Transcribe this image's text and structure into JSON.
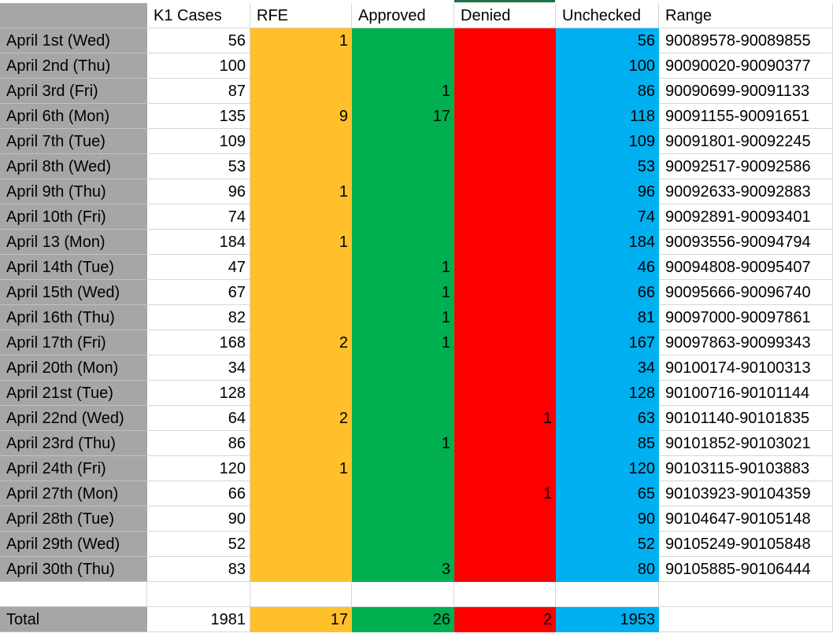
{
  "colors": {
    "label_gray": "#a6a6a6",
    "cases_white": "#ffffff",
    "rfe_yellow": "#ffc02b",
    "approved_green": "#00b050",
    "denied_red": "#ff0000",
    "unchecked_blue": "#00b0f0",
    "range_white": "#ffffff",
    "grid_line": "#d6d6d6"
  },
  "headers": {
    "label": "",
    "cases": "K1 Cases",
    "rfe": "RFE",
    "approved": "Approved",
    "denied": "Denied",
    "unchecked": "Unchecked",
    "range": "Range"
  },
  "rows": [
    {
      "label": "April 1st (Wed)",
      "cases": "56",
      "rfe": "1",
      "approved": "",
      "denied": "",
      "unchecked": "56",
      "range": "90089578-90089855"
    },
    {
      "label": "April 2nd (Thu)",
      "cases": "100",
      "rfe": "",
      "approved": "",
      "denied": "",
      "unchecked": "100",
      "range": "90090020-90090377"
    },
    {
      "label": "April 3rd (Fri)",
      "cases": "87",
      "rfe": "",
      "approved": "1",
      "denied": "",
      "unchecked": "86",
      "range": "90090699-90091133"
    },
    {
      "label": "April 6th (Mon)",
      "cases": "135",
      "rfe": "9",
      "approved": "17",
      "denied": "",
      "unchecked": "118",
      "range": "90091155-90091651"
    },
    {
      "label": "April 7th (Tue)",
      "cases": "109",
      "rfe": "",
      "approved": "",
      "denied": "",
      "unchecked": "109",
      "range": "90091801-90092245"
    },
    {
      "label": "April 8th (Wed)",
      "cases": "53",
      "rfe": "",
      "approved": "",
      "denied": "",
      "unchecked": "53",
      "range": "90092517-90092586"
    },
    {
      "label": "April 9th (Thu)",
      "cases": "96",
      "rfe": "1",
      "approved": "",
      "denied": "",
      "unchecked": "96",
      "range": "90092633-90092883"
    },
    {
      "label": "April 10th (Fri)",
      "cases": "74",
      "rfe": "",
      "approved": "",
      "denied": "",
      "unchecked": "74",
      "range": "90092891-90093401"
    },
    {
      "label": "April 13 (Mon)",
      "cases": "184",
      "rfe": "1",
      "approved": "",
      "denied": "",
      "unchecked": "184",
      "range": "90093556-90094794"
    },
    {
      "label": "April 14th (Tue)",
      "cases": "47",
      "rfe": "",
      "approved": "1",
      "denied": "",
      "unchecked": "46",
      "range": "90094808-90095407"
    },
    {
      "label": "April 15th (Wed)",
      "cases": "67",
      "rfe": "",
      "approved": "1",
      "denied": "",
      "unchecked": "66",
      "range": "90095666-90096740"
    },
    {
      "label": "April 16th (Thu)",
      "cases": "82",
      "rfe": "",
      "approved": "1",
      "denied": "",
      "unchecked": "81",
      "range": "90097000-90097861"
    },
    {
      "label": "April 17th (Fri)",
      "cases": "168",
      "rfe": "2",
      "approved": "1",
      "denied": "",
      "unchecked": "167",
      "range": "90097863-90099343"
    },
    {
      "label": "April 20th (Mon)",
      "cases": "34",
      "rfe": "",
      "approved": "",
      "denied": "",
      "unchecked": "34",
      "range": "90100174-90100313"
    },
    {
      "label": "April 21st (Tue)",
      "cases": "128",
      "rfe": "",
      "approved": "",
      "denied": "",
      "unchecked": "128",
      "range": "90100716-90101144"
    },
    {
      "label": "April 22nd (Wed)",
      "cases": "64",
      "rfe": "2",
      "approved": "",
      "denied": "1",
      "unchecked": "63",
      "range": "90101140-90101835"
    },
    {
      "label": "April 23rd (Thu)",
      "cases": "86",
      "rfe": "",
      "approved": "1",
      "denied": "",
      "unchecked": "85",
      "range": "90101852-90103021"
    },
    {
      "label": "April 24th (Fri)",
      "cases": "120",
      "rfe": "1",
      "approved": "",
      "denied": "",
      "unchecked": "120",
      "range": "90103115-90103883"
    },
    {
      "label": "April 27th (Mon)",
      "cases": "66",
      "rfe": "",
      "approved": "",
      "denied": "1",
      "unchecked": "65",
      "range": "90103923-90104359"
    },
    {
      "label": "April 28th (Tue)",
      "cases": "90",
      "rfe": "",
      "approved": "",
      "denied": "",
      "unchecked": "90",
      "range": "90104647-90105148"
    },
    {
      "label": "April 29th (Wed)",
      "cases": "52",
      "rfe": "",
      "approved": "",
      "denied": "",
      "unchecked": "52",
      "range": "90105249-90105848"
    },
    {
      "label": "April 30th (Thu)",
      "cases": "83",
      "rfe": "",
      "approved": "3",
      "denied": "",
      "unchecked": "80",
      "range": "90105885-90106444"
    }
  ],
  "totals": {
    "label": "Total",
    "cases": "1981",
    "rfe": "17",
    "approved": "26",
    "denied": "2",
    "unchecked": "1953",
    "range": ""
  }
}
